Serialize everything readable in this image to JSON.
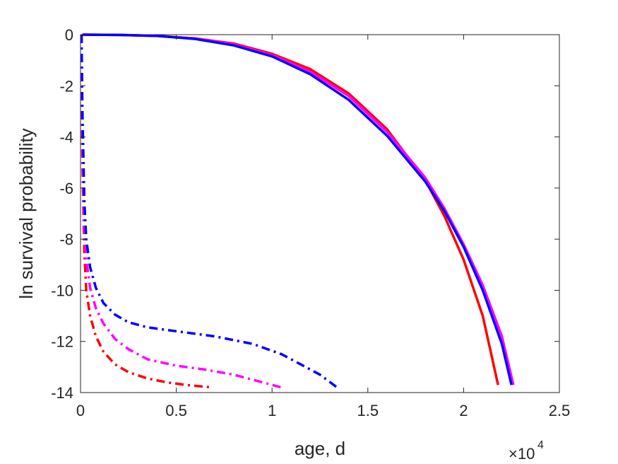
{
  "chart_data": {
    "type": "line",
    "xlabel": "age, d",
    "ylabel": "ln survival probability",
    "x_exponent_label": "×10",
    "x_exponent_power": "4",
    "xlim": [
      0,
      2.5
    ],
    "ylim": [
      -14,
      0
    ],
    "x_scale_factor": 10000,
    "xticks": [
      "0",
      "0.5",
      "1",
      "1.5",
      "2",
      "2.5"
    ],
    "yticks": [
      "0",
      "-2",
      "-4",
      "-6",
      "-8",
      "-10",
      "-12",
      "-14"
    ],
    "grid": false,
    "series": [
      {
        "style": "solid",
        "color": "#ff0000",
        "x": [
          0.01,
          0.2,
          0.4,
          0.6,
          0.8,
          1.0,
          1.2,
          1.4,
          1.6,
          1.8,
          1.9,
          2.0,
          2.1,
          2.18
        ],
        "y": [
          0,
          -0.01,
          -0.05,
          -0.15,
          -0.35,
          -0.75,
          -1.35,
          -2.3,
          -3.7,
          -5.7,
          -7.1,
          -8.8,
          -11.0,
          -13.7
        ]
      },
      {
        "style": "solid",
        "color": "#ff00ff",
        "x": [
          0.01,
          0.2,
          0.4,
          0.6,
          0.8,
          1.0,
          1.2,
          1.4,
          1.6,
          1.8,
          1.9,
          2.0,
          2.1,
          2.2,
          2.26
        ],
        "y": [
          0,
          -0.01,
          -0.05,
          -0.15,
          -0.38,
          -0.8,
          -1.45,
          -2.4,
          -3.8,
          -5.6,
          -6.8,
          -8.2,
          -9.8,
          -11.8,
          -13.7
        ]
      },
      {
        "style": "solid",
        "color": "#0000ff",
        "x": [
          0.01,
          0.2,
          0.4,
          0.6,
          0.8,
          1.0,
          1.2,
          1.4,
          1.6,
          1.8,
          1.9,
          2.0,
          2.1,
          2.2,
          2.25
        ],
        "y": [
          0,
          -0.01,
          -0.05,
          -0.17,
          -0.42,
          -0.85,
          -1.55,
          -2.55,
          -3.95,
          -5.75,
          -6.9,
          -8.3,
          -10.0,
          -12.1,
          -13.7
        ]
      },
      {
        "style": "dashdot",
        "color": "#ff0000",
        "x": [
          0.005,
          0.01,
          0.02,
          0.03,
          0.05,
          0.08,
          0.12,
          0.18,
          0.25,
          0.35,
          0.45,
          0.55,
          0.69
        ],
        "y": [
          0,
          -5,
          -8.5,
          -10.0,
          -11.0,
          -11.8,
          -12.4,
          -12.9,
          -13.2,
          -13.45,
          -13.6,
          -13.7,
          -13.8
        ]
      },
      {
        "style": "dashdot",
        "color": "#ff00ff",
        "x": [
          0.005,
          0.01,
          0.02,
          0.03,
          0.05,
          0.08,
          0.12,
          0.18,
          0.25,
          0.35,
          0.5,
          0.65,
          0.8,
          0.95,
          1.05
        ],
        "y": [
          0,
          -4,
          -7.5,
          -8.8,
          -9.9,
          -10.7,
          -11.3,
          -11.9,
          -12.3,
          -12.7,
          -12.95,
          -13.1,
          -13.3,
          -13.6,
          -13.8
        ]
      },
      {
        "style": "dashdot",
        "color": "#0000ff",
        "x": [
          0.005,
          0.01,
          0.02,
          0.03,
          0.05,
          0.08,
          0.12,
          0.18,
          0.25,
          0.35,
          0.5,
          0.7,
          0.9,
          1.05,
          1.15,
          1.25,
          1.34
        ],
        "y": [
          0,
          -3,
          -6.5,
          -8.0,
          -9.1,
          -9.9,
          -10.5,
          -10.95,
          -11.25,
          -11.45,
          -11.6,
          -11.8,
          -12.1,
          -12.5,
          -12.9,
          -13.3,
          -13.8
        ]
      }
    ]
  }
}
